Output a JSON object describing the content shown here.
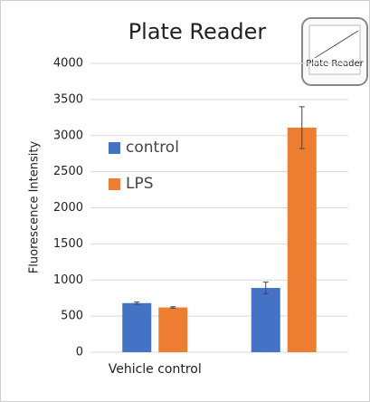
{
  "chart_data": {
    "type": "bar",
    "title": "Plate Reader",
    "icon_text": "Plate Reader",
    "y_label": "Fluorescence Intensity",
    "categories": [
      "Vehicle control",
      null
    ],
    "series": [
      {
        "name": "control",
        "color": "#4472c4",
        "values": [
          680,
          890
        ],
        "errors": [
          15,
          80
        ]
      },
      {
        "name": "LPS",
        "color": "#ed7d31",
        "values": [
          620,
          3110
        ],
        "errors": [
          10,
          290
        ]
      }
    ],
    "ylim": [
      0,
      4000
    ],
    "yticks": [
      0,
      500,
      1000,
      1500,
      2000,
      2500,
      3000,
      3500,
      4000
    ],
    "grid": true,
    "legend": "upper left"
  }
}
